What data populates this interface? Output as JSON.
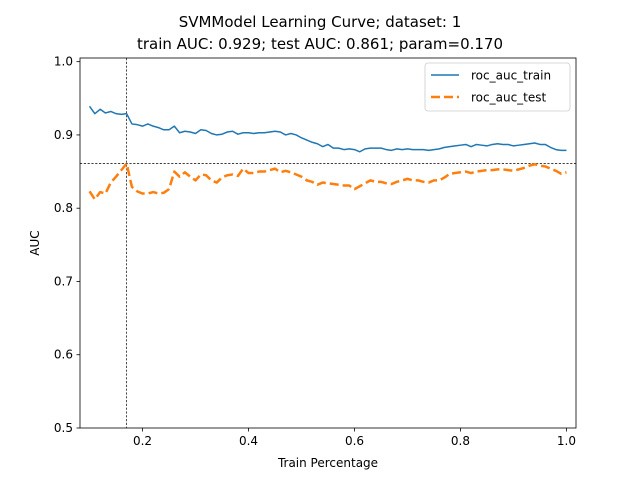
{
  "chart_data": {
    "type": "line",
    "title_line1": "SVMModel Learning Curve; dataset: 1",
    "title_line2": "train AUC: 0.929; test AUC: 0.861; param=0.170",
    "xlabel": "Train Percentage",
    "ylabel": "AUC",
    "xlim": [
      0.082,
      1.018
    ],
    "ylim": [
      0.5,
      1.005
    ],
    "xticks": [
      0.2,
      0.4,
      0.6,
      0.8,
      1.0
    ],
    "xtick_labels": [
      "0.2",
      "0.4",
      "0.6",
      "0.8",
      "1.0"
    ],
    "yticks": [
      0.5,
      0.6,
      0.7,
      0.8,
      0.9,
      1.0
    ],
    "ytick_labels": [
      "0.5",
      "0.6",
      "0.7",
      "0.8",
      "0.9",
      "1.0"
    ],
    "grid": false,
    "legend_position": "top-right",
    "reference_lines": {
      "vertical_x": 0.17,
      "horizontal_y": 0.861
    },
    "x": [
      0.1,
      0.11,
      0.12,
      0.13,
      0.14,
      0.15,
      0.16,
      0.17,
      0.18,
      0.19,
      0.2,
      0.21,
      0.22,
      0.23,
      0.24,
      0.25,
      0.26,
      0.27,
      0.28,
      0.29,
      0.3,
      0.31,
      0.32,
      0.33,
      0.34,
      0.35,
      0.36,
      0.37,
      0.38,
      0.39,
      0.4,
      0.41,
      0.42,
      0.43,
      0.44,
      0.45,
      0.46,
      0.47,
      0.48,
      0.49,
      0.5,
      0.51,
      0.52,
      0.53,
      0.54,
      0.55,
      0.56,
      0.57,
      0.58,
      0.59,
      0.6,
      0.61,
      0.62,
      0.63,
      0.64,
      0.65,
      0.66,
      0.67,
      0.68,
      0.69,
      0.7,
      0.71,
      0.72,
      0.73,
      0.74,
      0.75,
      0.76,
      0.77,
      0.78,
      0.79,
      0.8,
      0.81,
      0.82,
      0.83,
      0.84,
      0.85,
      0.86,
      0.87,
      0.88,
      0.89,
      0.9,
      0.91,
      0.92,
      0.93,
      0.94,
      0.95,
      0.96,
      0.97,
      0.98,
      0.99,
      1.0
    ],
    "series": [
      {
        "name": "roc_auc_train",
        "color": "#1f77b4",
        "style": "solid",
        "values": [
          0.939,
          0.929,
          0.935,
          0.93,
          0.932,
          0.929,
          0.928,
          0.929,
          0.915,
          0.914,
          0.912,
          0.915,
          0.912,
          0.91,
          0.907,
          0.907,
          0.912,
          0.903,
          0.905,
          0.904,
          0.902,
          0.907,
          0.906,
          0.902,
          0.9,
          0.901,
          0.904,
          0.905,
          0.901,
          0.903,
          0.903,
          0.902,
          0.903,
          0.903,
          0.904,
          0.905,
          0.904,
          0.9,
          0.902,
          0.9,
          0.896,
          0.893,
          0.89,
          0.888,
          0.884,
          0.887,
          0.882,
          0.882,
          0.88,
          0.881,
          0.88,
          0.877,
          0.881,
          0.882,
          0.882,
          0.882,
          0.88,
          0.879,
          0.881,
          0.88,
          0.881,
          0.88,
          0.88,
          0.88,
          0.879,
          0.88,
          0.881,
          0.883,
          0.884,
          0.885,
          0.886,
          0.887,
          0.884,
          0.887,
          0.886,
          0.885,
          0.887,
          0.888,
          0.887,
          0.887,
          0.885,
          0.886,
          0.887,
          0.888,
          0.889,
          0.887,
          0.887,
          0.883,
          0.88,
          0.879,
          0.879
        ]
      },
      {
        "name": "roc_auc_test",
        "color": "#ff7f0e",
        "style": "dashed",
        "values": [
          0.823,
          0.812,
          0.822,
          0.82,
          0.835,
          0.843,
          0.852,
          0.861,
          0.829,
          0.823,
          0.82,
          0.82,
          0.822,
          0.82,
          0.821,
          0.826,
          0.85,
          0.843,
          0.849,
          0.843,
          0.838,
          0.846,
          0.845,
          0.838,
          0.835,
          0.842,
          0.845,
          0.846,
          0.844,
          0.854,
          0.848,
          0.848,
          0.85,
          0.85,
          0.852,
          0.854,
          0.849,
          0.851,
          0.849,
          0.846,
          0.843,
          0.838,
          0.836,
          0.832,
          0.835,
          0.834,
          0.833,
          0.832,
          0.831,
          0.831,
          0.826,
          0.83,
          0.834,
          0.838,
          0.836,
          0.836,
          0.834,
          0.833,
          0.836,
          0.838,
          0.84,
          0.838,
          0.838,
          0.836,
          0.835,
          0.838,
          0.838,
          0.842,
          0.847,
          0.848,
          0.849,
          0.85,
          0.848,
          0.85,
          0.851,
          0.852,
          0.852,
          0.853,
          0.853,
          0.852,
          0.851,
          0.853,
          0.855,
          0.858,
          0.86,
          0.858,
          0.857,
          0.854,
          0.851,
          0.847,
          0.849
        ]
      }
    ]
  }
}
